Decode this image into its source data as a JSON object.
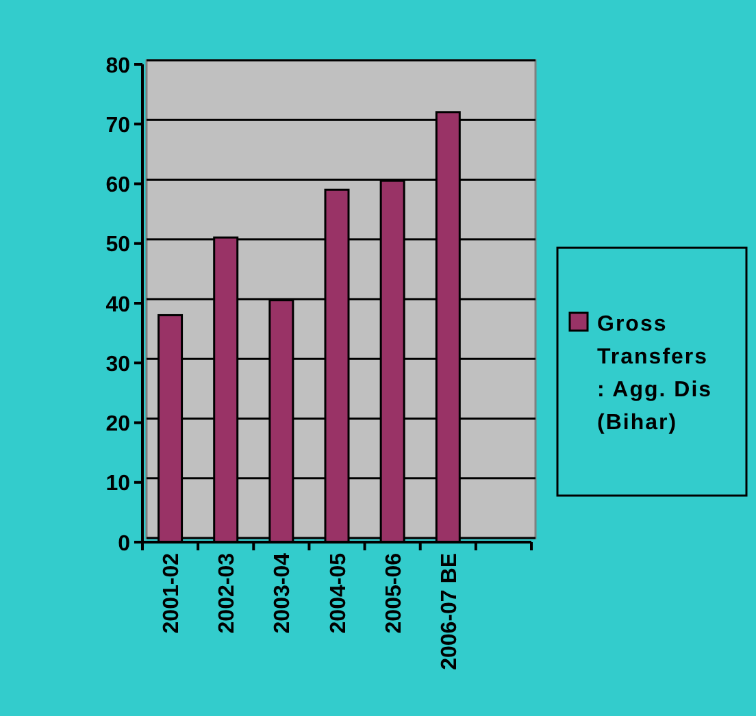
{
  "chart_data": {
    "type": "bar",
    "categories": [
      "2001-02",
      "2002-03",
      "2003-04",
      "2004-05",
      "2005-06",
      "2006-07 BE",
      null
    ],
    "series": [
      {
        "name": "Gross Transfers : Agg. Dis (Bihar)",
        "color": "#993366",
        "values": [
          38,
          51,
          40.5,
          59,
          60.5,
          72,
          null
        ]
      }
    ],
    "ylim": [
      0,
      80
    ],
    "yticks": [
      0,
      10,
      20,
      30,
      40,
      50,
      60,
      70,
      80
    ],
    "grid": "y",
    "legend": "right"
  }
}
